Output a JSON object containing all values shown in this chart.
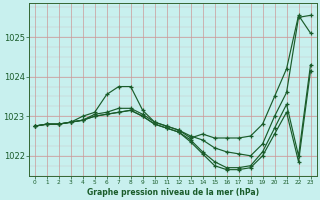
{
  "background_color": "#c8f0ee",
  "line_color": "#1a5c2a",
  "title": "Graphe pression niveau de la mer (hPa)",
  "xlim": [
    -0.5,
    23.5
  ],
  "ylim": [
    1021.5,
    1025.85
  ],
  "yticks": [
    1022,
    1023,
    1024,
    1025
  ],
  "xticks": [
    0,
    1,
    2,
    3,
    4,
    5,
    6,
    7,
    8,
    9,
    10,
    11,
    12,
    13,
    14,
    15,
    16,
    17,
    18,
    19,
    20,
    21,
    22,
    23
  ],
  "lines_x": [
    [
      0,
      1,
      2,
      3,
      4,
      5,
      6,
      7,
      8,
      9,
      10,
      11,
      12,
      13,
      14,
      15,
      16,
      17,
      18,
      19,
      20,
      21,
      22,
      23
    ],
    [
      0,
      1,
      2,
      3,
      4,
      5,
      6,
      7,
      8,
      9,
      10,
      11,
      12,
      13,
      14,
      15,
      16,
      17,
      18,
      19,
      20,
      21,
      22,
      23
    ],
    [
      0,
      1,
      2,
      3,
      4,
      5,
      6,
      7,
      8,
      9,
      10,
      11,
      12,
      13,
      14,
      15,
      16,
      17,
      18,
      19,
      20,
      21,
      22,
      23
    ],
    [
      0,
      1,
      2,
      3,
      4,
      5,
      6,
      7,
      8,
      9,
      10,
      11,
      12,
      13,
      14,
      15,
      16,
      17,
      18,
      19,
      20,
      21,
      22,
      23
    ]
  ],
  "lines_y": [
    [
      1022.75,
      1022.8,
      1022.8,
      1022.85,
      1023.0,
      1023.1,
      1023.55,
      1023.75,
      1023.75,
      1023.15,
      1022.85,
      1022.75,
      1022.65,
      1022.45,
      1022.55,
      1022.45,
      1022.45,
      1022.45,
      1022.5,
      1022.8,
      1023.5,
      1024.2,
      1025.55,
      1025.1
    ],
    [
      1022.75,
      1022.8,
      1022.8,
      1022.85,
      1022.9,
      1023.05,
      1023.1,
      1023.2,
      1023.2,
      1023.05,
      1022.85,
      1022.75,
      1022.65,
      1022.5,
      1022.4,
      1022.2,
      1022.1,
      1022.05,
      1022.0,
      1022.3,
      1023.0,
      1023.6,
      1025.5,
      1025.55
    ],
    [
      1022.75,
      1022.8,
      1022.8,
      1022.85,
      1022.9,
      1023.0,
      1023.05,
      1023.1,
      1023.15,
      1023.0,
      1022.8,
      1022.7,
      1022.6,
      1022.4,
      1022.1,
      1021.85,
      1021.7,
      1021.7,
      1021.75,
      1022.1,
      1022.7,
      1023.3,
      1022.0,
      1024.3
    ],
    [
      1022.75,
      1022.8,
      1022.8,
      1022.85,
      1022.9,
      1023.0,
      1023.05,
      1023.1,
      1023.15,
      1023.0,
      1022.8,
      1022.7,
      1022.6,
      1022.35,
      1022.05,
      1021.75,
      1021.65,
      1021.65,
      1021.7,
      1022.0,
      1022.55,
      1023.1,
      1021.85,
      1024.15
    ]
  ]
}
